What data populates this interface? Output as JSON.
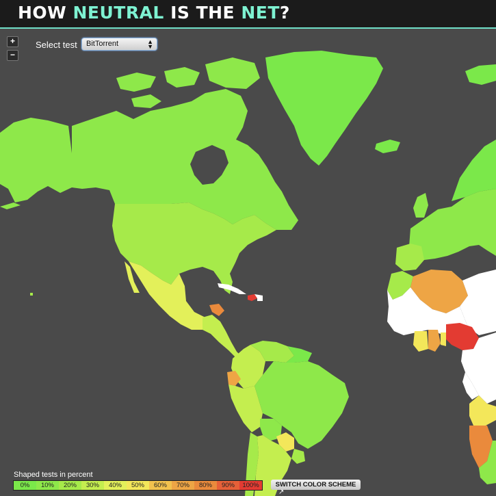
{
  "header": {
    "title_parts": [
      {
        "text": "HOW ",
        "highlight": false
      },
      {
        "text": "NEUTRAL",
        "highlight": true
      },
      {
        "text": " IS THE ",
        "highlight": false
      },
      {
        "text": "NET",
        "highlight": true
      },
      {
        "text": "?",
        "highlight": false
      }
    ]
  },
  "controls": {
    "zoom_in": "+",
    "zoom_out": "−",
    "select_label": "Select test",
    "select_value": "BitTorrent"
  },
  "legend": {
    "title": "Shaped tests in percent",
    "bins": [
      {
        "label": "0%",
        "color": "#7be84a"
      },
      {
        "label": "10%",
        "color": "#8ee84a"
      },
      {
        "label": "20%",
        "color": "#a6ea4a"
      },
      {
        "label": "30%",
        "color": "#c4ee4f"
      },
      {
        "label": "40%",
        "color": "#e3f05a"
      },
      {
        "label": "50%",
        "color": "#f3e75a"
      },
      {
        "label": "60%",
        "color": "#f2c24e"
      },
      {
        "label": "70%",
        "color": "#eea545"
      },
      {
        "label": "80%",
        "color": "#ea8a3c"
      },
      {
        "label": "90%",
        "color": "#e66038"
      },
      {
        "label": "100%",
        "color": "#e33b32"
      }
    ],
    "switch_label": "SWITCH COLOR SCHEME"
  },
  "map": {
    "background": "#4a4a4a",
    "regions": [
      {
        "name": "Alaska",
        "value_pct": 10
      },
      {
        "name": "Canada",
        "value_pct": 10
      },
      {
        "name": "Greenland",
        "value_pct": 0
      },
      {
        "name": "United States",
        "value_pct": 20
      },
      {
        "name": "Mexico",
        "value_pct": 40
      },
      {
        "name": "Central America",
        "value_pct": 30
      },
      {
        "name": "Cuba",
        "value_pct": null
      },
      {
        "name": "Haiti",
        "value_pct": 100
      },
      {
        "name": "Colombia",
        "value_pct": 30
      },
      {
        "name": "Venezuela",
        "value_pct": 20
      },
      {
        "name": "Ecuador",
        "value_pct": 60
      },
      {
        "name": "Peru",
        "value_pct": 30
      },
      {
        "name": "Brazil",
        "value_pct": 10
      },
      {
        "name": "Bolivia",
        "value_pct": 10
      },
      {
        "name": "Paraguay",
        "value_pct": 50
      },
      {
        "name": "Argentina",
        "value_pct": 30
      },
      {
        "name": "Chile",
        "value_pct": 20
      },
      {
        "name": "Uruguay",
        "value_pct": 20
      },
      {
        "name": "Europe",
        "value_pct": 10
      },
      {
        "name": "Morocco",
        "value_pct": 20
      },
      {
        "name": "Algeria",
        "value_pct": 70
      },
      {
        "name": "West Africa",
        "value_pct": null
      },
      {
        "name": "Ghana",
        "value_pct": 70
      },
      {
        "name": "Nigeria",
        "value_pct": 100
      },
      {
        "name": "Angola",
        "value_pct": 50
      },
      {
        "name": "Namibia",
        "value_pct": 80
      },
      {
        "name": "South Africa",
        "value_pct": 10
      }
    ]
  }
}
